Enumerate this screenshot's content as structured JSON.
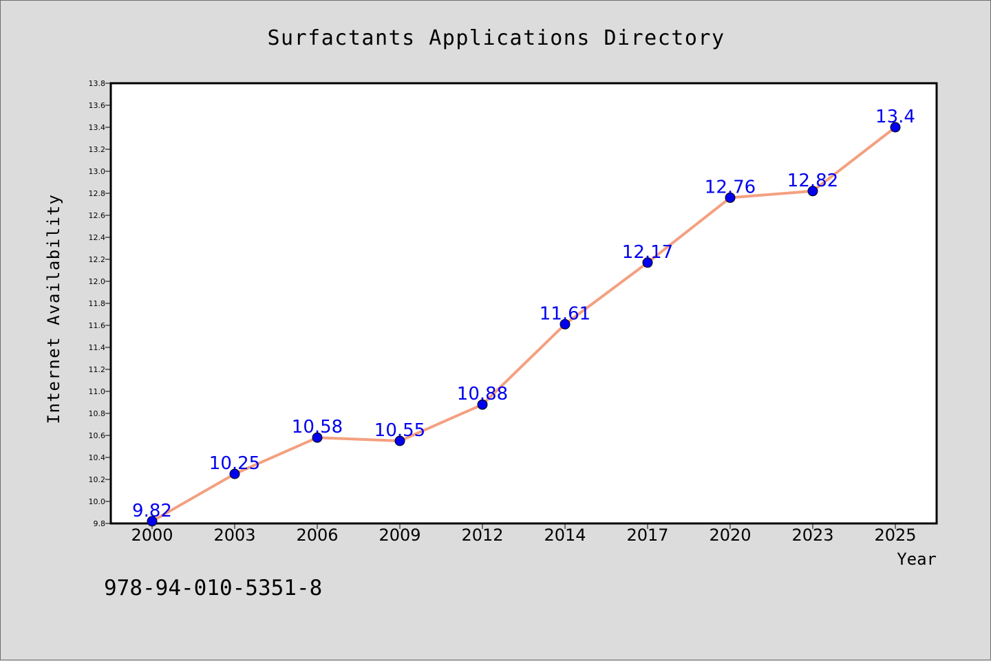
{
  "chart_data": {
    "type": "line",
    "title": "Surfactants Applications Directory",
    "xlabel": "Year",
    "ylabel": "Internet Availability",
    "categories": [
      "2000",
      "2003",
      "2006",
      "2009",
      "2012",
      "2014",
      "2017",
      "2020",
      "2023",
      "2025"
    ],
    "series": [
      {
        "values": [
          9.82,
          10.25,
          10.58,
          10.55,
          10.88,
          11.61,
          12.17,
          12.76,
          12.82,
          13.4
        ],
        "data_labels": [
          "9.82",
          "10.25",
          "10.58",
          "10.55",
          "10.88",
          "11.61",
          "12.17",
          "12.76",
          "12.82",
          "13.4"
        ],
        "line_color": "#f4a080",
        "marker_color": "#0000ee"
      }
    ],
    "ylim": [
      9.8,
      13.8
    ],
    "yticks": [
      "9.8",
      "10.0",
      "10.2",
      "10.4",
      "10.6",
      "10.8",
      "11.0",
      "11.2",
      "11.4",
      "11.6",
      "11.8",
      "12.0",
      "12.2",
      "12.4",
      "12.6",
      "12.8",
      "13.0",
      "13.2",
      "13.4",
      "13.6",
      "13.8"
    ],
    "grid": false,
    "legend": false,
    "annotation": "978-94-010-5351-8",
    "colors": {
      "background": "#dcdcdc",
      "plot_background": "#ffffff",
      "label_color": "#0000ee"
    }
  }
}
